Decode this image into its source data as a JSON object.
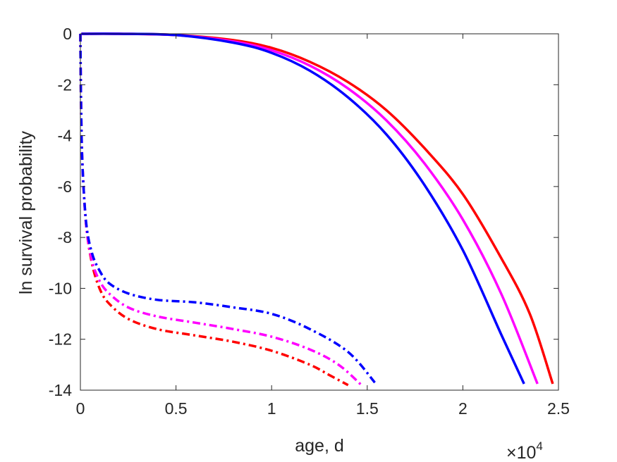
{
  "chart_data": {
    "type": "line",
    "title": "",
    "xlabel": "age, d",
    "ylabel": "ln survival probability",
    "x_multiplier": {
      "base": "×10",
      "exponent": "4"
    },
    "xlim": [
      0,
      25000
    ],
    "ylim": [
      -14,
      0
    ],
    "xticks": [
      0,
      5000,
      10000,
      15000,
      20000,
      25000
    ],
    "xtick_labels": [
      "0",
      "0.5",
      "1",
      "1.5",
      "2",
      "2.5"
    ],
    "yticks": [
      0,
      -2,
      -4,
      -6,
      -8,
      -10,
      -12,
      -14
    ],
    "ytick_labels": [
      "0",
      "-2",
      "-4",
      "-6",
      "-8",
      "-10",
      "-12",
      "-14"
    ],
    "grid": false,
    "legend": "none",
    "series": [
      {
        "color": "#ff0000",
        "style": "solid",
        "x": [
          50,
          2000,
          5000,
          8000,
          10000,
          12000,
          14000,
          16000,
          18000,
          20000,
          22000,
          23500,
          24700
        ],
        "y": [
          0,
          0,
          -0.05,
          -0.25,
          -0.55,
          -1.1,
          -1.9,
          -3.0,
          -4.5,
          -6.3,
          -8.8,
          -11.0,
          -13.75
        ]
      },
      {
        "color": "#ff00ff",
        "style": "solid",
        "x": [
          50,
          2000,
          5000,
          8000,
          10000,
          12000,
          14000,
          16000,
          18000,
          20000,
          22000,
          23900
        ],
        "y": [
          0,
          0,
          -0.05,
          -0.3,
          -0.65,
          -1.25,
          -2.15,
          -3.4,
          -5.1,
          -7.3,
          -10.2,
          -13.75
        ]
      },
      {
        "color": "#0000ff",
        "style": "solid",
        "x": [
          50,
          2000,
          5000,
          8000,
          10000,
          12000,
          14000,
          16000,
          18000,
          20000,
          22000,
          23200
        ],
        "y": [
          0,
          0,
          -0.05,
          -0.35,
          -0.75,
          -1.45,
          -2.5,
          -3.95,
          -5.95,
          -8.5,
          -11.8,
          -13.75
        ]
      },
      {
        "color": "#ff0000",
        "style": "dashdot",
        "x": [
          0,
          30,
          100,
          300,
          600,
          1000,
          1500,
          2500,
          4000,
          6000,
          8000,
          10000,
          12000,
          13000,
          14000
        ],
        "y": [
          0,
          -2.5,
          -5.0,
          -7.5,
          -9.0,
          -10.0,
          -10.6,
          -11.2,
          -11.6,
          -11.85,
          -12.1,
          -12.45,
          -13.0,
          -13.4,
          -13.8
        ]
      },
      {
        "color": "#ff00ff",
        "style": "dashdot",
        "x": [
          0,
          30,
          100,
          300,
          600,
          1000,
          1500,
          2500,
          4000,
          6000,
          8000,
          10000,
          12000,
          13500,
          14700
        ],
        "y": [
          0,
          -2.5,
          -5.0,
          -7.5,
          -8.9,
          -9.7,
          -10.2,
          -10.75,
          -11.1,
          -11.35,
          -11.6,
          -11.9,
          -12.4,
          -13.0,
          -13.8
        ]
      },
      {
        "color": "#0000ff",
        "style": "dashdot",
        "x": [
          0,
          30,
          100,
          300,
          600,
          1000,
          1500,
          2500,
          4000,
          6000,
          8000,
          10000,
          12000,
          14000,
          15400
        ],
        "y": [
          0,
          -2.5,
          -5.0,
          -7.4,
          -8.6,
          -9.3,
          -9.8,
          -10.2,
          -10.45,
          -10.55,
          -10.75,
          -11.0,
          -11.6,
          -12.5,
          -13.7
        ]
      }
    ]
  }
}
